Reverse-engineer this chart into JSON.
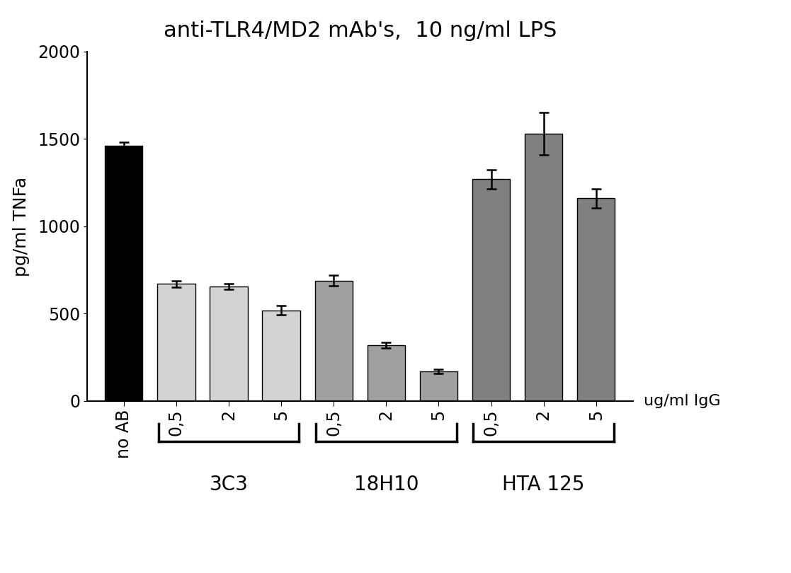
{
  "title": "anti-TLR4/MD2 mAb's,  10 ng/ml LPS",
  "ylabel": "pg/ml TNFa",
  "xlabel": "ug/ml IgG",
  "ylim": [
    0,
    2000
  ],
  "yticks": [
    0,
    500,
    1000,
    1500,
    2000
  ],
  "bar_labels": [
    "no AB",
    "0,5",
    "2",
    "5",
    "0,5",
    "2",
    "5",
    "0,5",
    "2",
    "5"
  ],
  "bar_values": [
    1460,
    670,
    655,
    520,
    690,
    320,
    170,
    1270,
    1530,
    1160
  ],
  "bar_errors": [
    20,
    18,
    15,
    25,
    30,
    15,
    12,
    55,
    120,
    55
  ],
  "bar_colors": [
    "#000000",
    "#d3d3d3",
    "#d3d3d3",
    "#d3d3d3",
    "#a0a0a0",
    "#a0a0a0",
    "#a0a0a0",
    "#808080",
    "#808080",
    "#808080"
  ],
  "group_labels": [
    "3C3",
    "18H10",
    "HTA 125"
  ],
  "background_color": "#ffffff",
  "title_fontsize": 22,
  "axis_label_fontsize": 18,
  "tick_fontsize": 17,
  "group_label_fontsize": 20,
  "bar_width": 0.72,
  "figsize": [
    11.17,
    8.1
  ],
  "dpi": 100
}
